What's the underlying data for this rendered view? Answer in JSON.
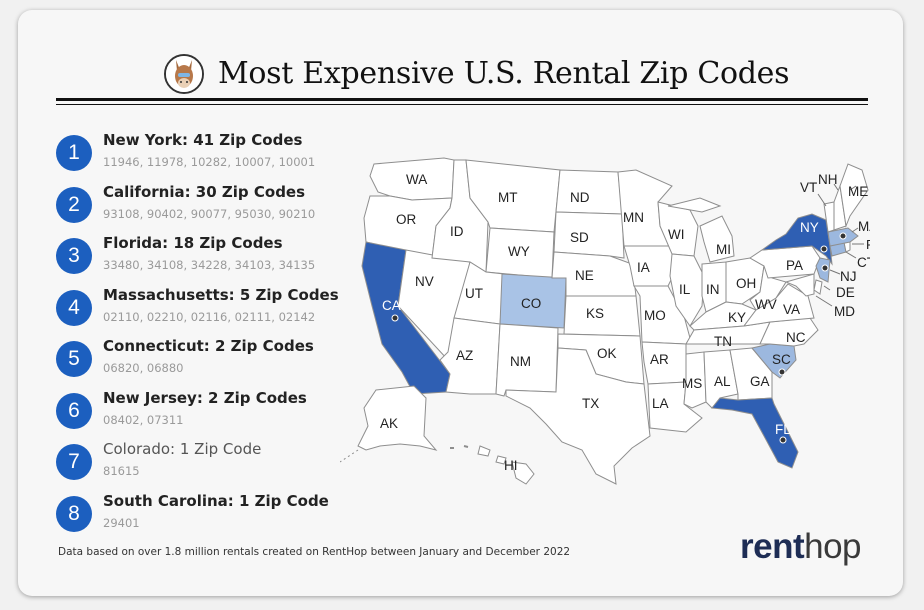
{
  "title": "Most Expensive U.S. Rental Zip Codes",
  "colors": {
    "accent": "#1c5fbf",
    "dark_state": "#2f5fb3",
    "mid_state": "#9cb8df",
    "light_state": "#a9c3e6",
    "brand": "#1e2d55"
  },
  "list": [
    {
      "rank": "1",
      "title": "New York: 41 Zip Codes",
      "zips": "11946, 11978, 10282, 10007, 10001"
    },
    {
      "rank": "2",
      "title": "California: 30 Zip Codes",
      "zips": "93108, 90402, 90077, 95030, 90210"
    },
    {
      "rank": "3",
      "title": "Florida: 18 Zip Codes",
      "zips": "33480, 34108, 34228, 34103, 34135"
    },
    {
      "rank": "4",
      "title": "Massachusetts: 5 Zip Codes",
      "zips": "02110, 02210, 02116, 02111, 02142"
    },
    {
      "rank": "5",
      "title": "Connecticut: 2 Zip Codes",
      "zips": "06820, 06880"
    },
    {
      "rank": "6",
      "title": "New Jersey: 2 Zip Codes",
      "zips": "08402, 07311"
    },
    {
      "rank": "7",
      "title": "Colorado: 1 Zip Code",
      "zips": "81615"
    },
    {
      "rank": "8",
      "title": "South Carolina: 1 Zip Code",
      "zips": "29401"
    }
  ],
  "footnote": "Data based on over 1.8 million rentals created on RentHop between January and December 2022",
  "brand": {
    "part1": "rent",
    "part2": "hop"
  },
  "map": {
    "labels": {
      "WA": "WA",
      "OR": "OR",
      "CA": "CA",
      "NV": "NV",
      "ID": "ID",
      "MT": "MT",
      "WY": "WY",
      "UT": "UT",
      "AZ": "AZ",
      "CO": "CO",
      "NM": "NM",
      "ND": "ND",
      "SD": "SD",
      "NE": "NE",
      "KS": "KS",
      "OK": "OK",
      "TX": "TX",
      "MN": "MN",
      "IA": "IA",
      "MO": "MO",
      "AR": "AR",
      "LA": "LA",
      "WI": "WI",
      "IL": "IL",
      "MI": "MI",
      "IN": "IN",
      "OH": "OH",
      "KY": "KY",
      "TN": "TN",
      "MS": "MS",
      "AL": "AL",
      "GA": "GA",
      "FL": "FL",
      "SC": "SC",
      "NC": "NC",
      "VA": "VA",
      "WV": "WV",
      "PA": "PA",
      "NY": "NY",
      "VT": "VT",
      "NH": "NH",
      "ME": "ME",
      "MA": "MA",
      "RI": "RI",
      "CT": "CT",
      "NJ": "NJ",
      "DE": "DE",
      "MD": "MD",
      "AK": "AK",
      "HI": "HI"
    },
    "highlighted": [
      {
        "state": "NY",
        "zip_codes": 41
      },
      {
        "state": "CA",
        "zip_codes": 30
      },
      {
        "state": "FL",
        "zip_codes": 18
      },
      {
        "state": "MA",
        "zip_codes": 5
      },
      {
        "state": "CT",
        "zip_codes": 2
      },
      {
        "state": "NJ",
        "zip_codes": 2
      },
      {
        "state": "CO",
        "zip_codes": 1
      },
      {
        "state": "SC",
        "zip_codes": 1
      }
    ]
  }
}
